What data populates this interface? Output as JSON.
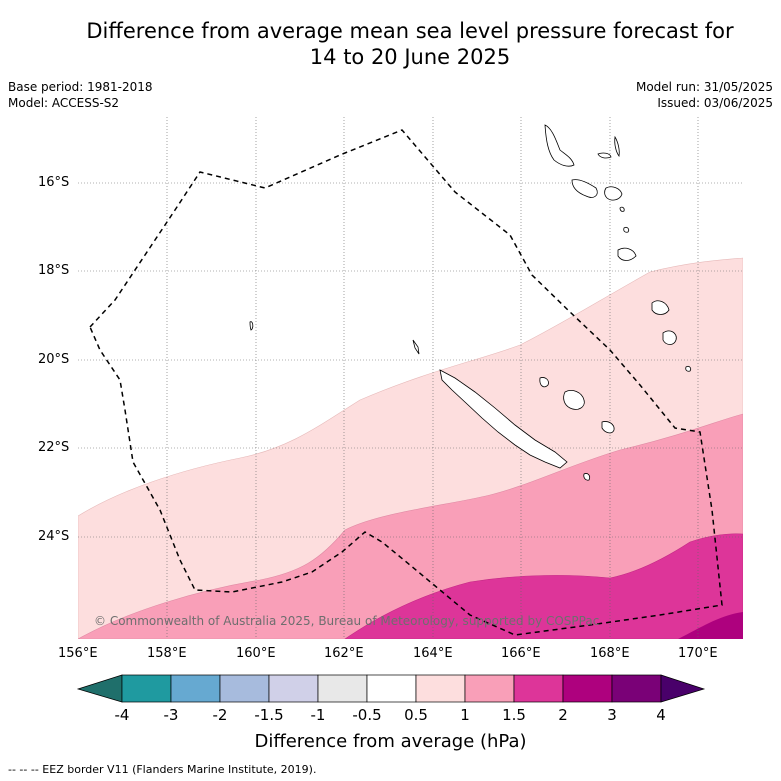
{
  "title_line1": "Difference from average mean sea level pressure forecast for",
  "title_line2": "14 to 20 June 2025",
  "meta_left": [
    "Base period: 1981-2018",
    "Model: ACCESS-S2"
  ],
  "meta_right": [
    "Model run: 31/05/2025",
    "Issued: 03/06/2025"
  ],
  "map": {
    "lon_labels": [
      "156°E",
      "158°E",
      "160°E",
      "162°E",
      "164°E",
      "166°E",
      "168°E",
      "170°E"
    ],
    "lat_labels": [
      "16°S",
      "18°S",
      "20°S",
      "22°S",
      "24°S"
    ],
    "copyright": "© Commonwealth of Australia 2025, Bureau of Meteorology, supported by COSPPac"
  },
  "colorbar": {
    "ticks": [
      "-4",
      "-3",
      "-2",
      "-1.5",
      "-1",
      "-0.5",
      "0.5",
      "1",
      "1.5",
      "2",
      "3",
      "4"
    ],
    "colors": [
      "#1f6f6b",
      "#1f9aa0",
      "#66a9d1",
      "#a7bbdd",
      "#d0d0e8",
      "#e8e8e8",
      "#ffffff",
      "#fddede",
      "#f99fb8",
      "#dd3599",
      "#ae017e",
      "#7a0177",
      "#49006a"
    ],
    "title": "Difference from average (hPa)"
  },
  "footer": "--  --  -- EEZ border V11 (Flanders Marine Institute, 2019)."
}
